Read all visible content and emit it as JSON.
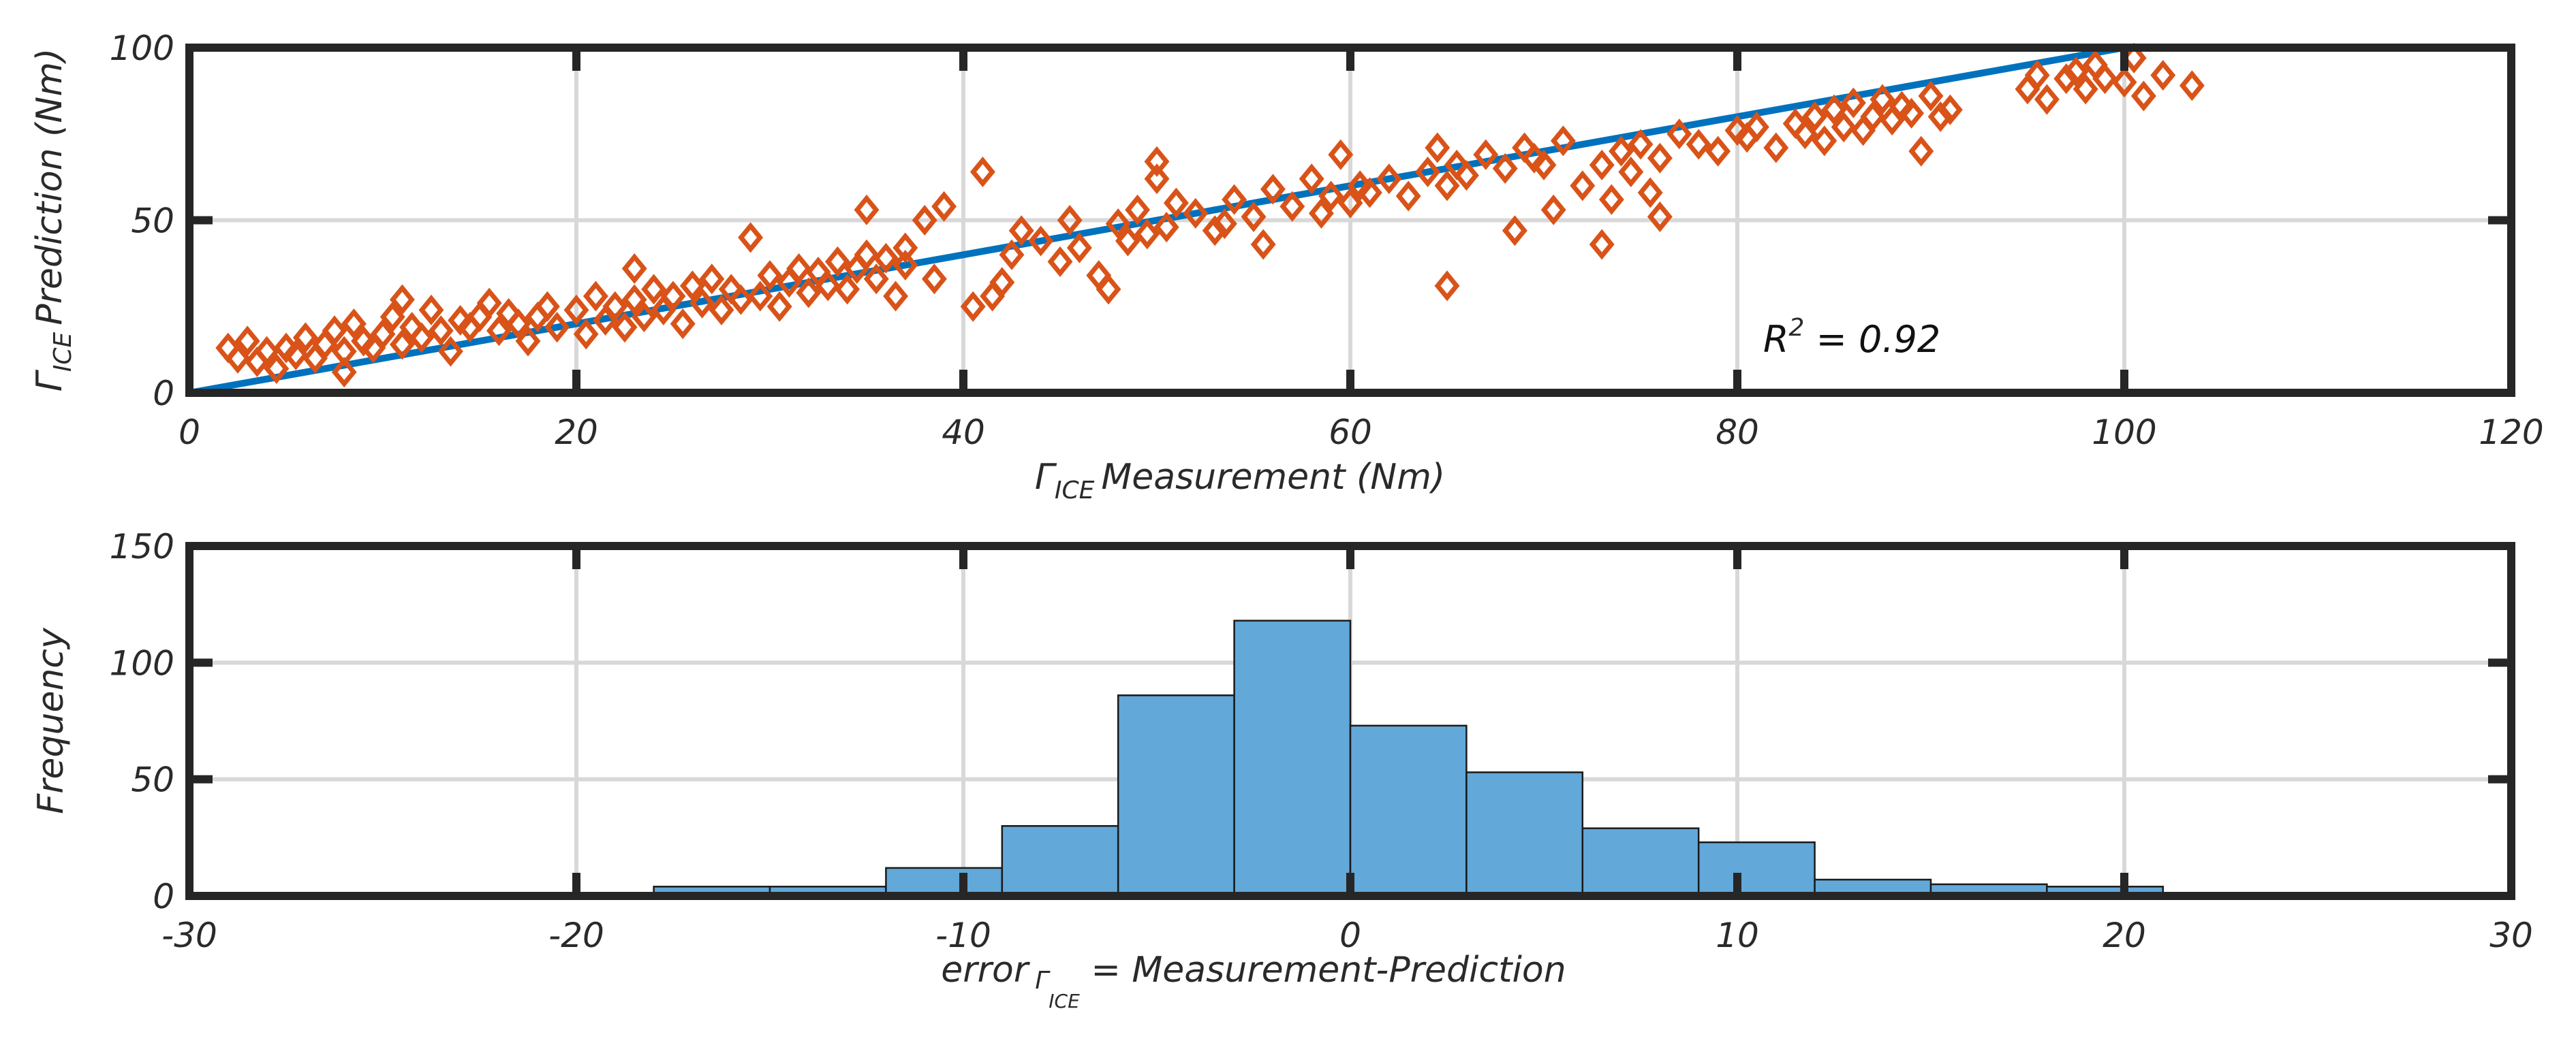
{
  "chart_data": [
    {
      "type": "scatter",
      "title": "",
      "xlabel": {
        "symbol": "Γ",
        "subscript": "ICE",
        "text": "Measurement (Nm)"
      },
      "ylabel": {
        "symbol": "Γ",
        "subscript": "ICE",
        "text": "Prediction (Nm)"
      },
      "xlim": [
        0,
        120
      ],
      "ylim": [
        0,
        100
      ],
      "xticks": [
        0,
        20,
        40,
        60,
        80,
        100,
        120
      ],
      "yticks": [
        0,
        50,
        100
      ],
      "grid": true,
      "annotation": {
        "base": "R",
        "sup": "2",
        "rest": " = 0.92",
        "x": 82,
        "y": 15
      },
      "fit_line": {
        "x": [
          0,
          100
        ],
        "y": [
          0,
          100
        ],
        "color": "#0072bd"
      },
      "marker": "diamond",
      "marker_color": "#d95319",
      "points": [
        [
          2,
          13
        ],
        [
          2.5,
          10
        ],
        [
          3,
          15
        ],
        [
          3.5,
          9
        ],
        [
          4,
          12
        ],
        [
          4.5,
          7
        ],
        [
          5,
          13
        ],
        [
          5.5,
          11
        ],
        [
          6,
          16
        ],
        [
          6.5,
          10
        ],
        [
          7,
          14
        ],
        [
          7.5,
          18
        ],
        [
          8,
          6
        ],
        [
          8,
          12
        ],
        [
          8.5,
          20
        ],
        [
          9,
          15
        ],
        [
          9.5,
          13
        ],
        [
          10,
          17
        ],
        [
          10.5,
          22
        ],
        [
          11,
          14
        ],
        [
          11,
          27
        ],
        [
          11.5,
          19
        ],
        [
          12,
          16
        ],
        [
          12.5,
          24
        ],
        [
          13,
          18
        ],
        [
          13.5,
          12
        ],
        [
          14,
          21
        ],
        [
          14.5,
          19
        ],
        [
          15,
          22
        ],
        [
          15.5,
          26
        ],
        [
          16,
          18
        ],
        [
          16.5,
          23
        ],
        [
          17,
          20
        ],
        [
          17.5,
          15
        ],
        [
          18,
          22
        ],
        [
          18.5,
          25
        ],
        [
          19,
          19
        ],
        [
          20,
          24
        ],
        [
          20.5,
          17
        ],
        [
          21,
          28
        ],
        [
          21.5,
          21
        ],
        [
          22,
          25
        ],
        [
          22.5,
          19
        ],
        [
          23,
          27
        ],
        [
          23,
          36
        ],
        [
          23.5,
          22
        ],
        [
          24,
          30
        ],
        [
          24.5,
          24
        ],
        [
          25,
          28
        ],
        [
          25.5,
          20
        ],
        [
          26,
          31
        ],
        [
          26.5,
          26
        ],
        [
          27,
          33
        ],
        [
          27.5,
          24
        ],
        [
          28,
          30
        ],
        [
          28.5,
          27
        ],
        [
          29,
          45
        ],
        [
          29.5,
          28
        ],
        [
          30,
          34
        ],
        [
          30.5,
          25
        ],
        [
          31,
          32
        ],
        [
          31.5,
          36
        ],
        [
          32,
          29
        ],
        [
          32.5,
          35
        ],
        [
          33,
          31
        ],
        [
          33.5,
          38
        ],
        [
          34,
          30
        ],
        [
          34.5,
          36
        ],
        [
          35,
          40
        ],
        [
          35,
          53
        ],
        [
          35.5,
          33
        ],
        [
          36,
          39
        ],
        [
          36.5,
          28
        ],
        [
          37,
          42
        ],
        [
          37,
          37
        ],
        [
          38,
          50
        ],
        [
          38.5,
          33
        ],
        [
          39,
          54
        ],
        [
          40.5,
          25
        ],
        [
          41,
          64
        ],
        [
          41.5,
          28
        ],
        [
          42,
          32
        ],
        [
          42.5,
          40
        ],
        [
          43,
          47
        ],
        [
          44,
          44
        ],
        [
          45,
          38
        ],
        [
          45.5,
          50
        ],
        [
          46,
          42
        ],
        [
          47,
          34
        ],
        [
          47.5,
          30
        ],
        [
          48,
          49
        ],
        [
          48.5,
          44
        ],
        [
          49,
          53
        ],
        [
          49.5,
          46
        ],
        [
          50,
          62
        ],
        [
          50,
          67
        ],
        [
          50.5,
          48
        ],
        [
          51,
          55
        ],
        [
          52,
          52
        ],
        [
          53,
          47
        ],
        [
          53.5,
          49
        ],
        [
          54,
          56
        ],
        [
          55,
          51
        ],
        [
          55.5,
          43
        ],
        [
          56,
          59
        ],
        [
          57,
          54
        ],
        [
          58,
          62
        ],
        [
          58.5,
          52
        ],
        [
          59,
          57
        ],
        [
          59.5,
          69
        ],
        [
          60,
          55
        ],
        [
          60.5,
          60
        ],
        [
          61,
          58
        ],
        [
          62,
          62
        ],
        [
          63,
          57
        ],
        [
          64,
          64
        ],
        [
          64.5,
          71
        ],
        [
          65,
          60
        ],
        [
          65,
          31
        ],
        [
          65.5,
          66
        ],
        [
          66,
          63
        ],
        [
          67,
          69
        ],
        [
          68,
          65
        ],
        [
          68.5,
          47
        ],
        [
          69,
          71
        ],
        [
          69.5,
          68
        ],
        [
          70,
          66
        ],
        [
          70.5,
          53
        ],
        [
          71,
          73
        ],
        [
          72,
          60
        ],
        [
          73,
          66
        ],
        [
          73,
          43
        ],
        [
          73.5,
          56
        ],
        [
          74,
          70
        ],
        [
          74.5,
          64
        ],
        [
          75,
          72
        ],
        [
          75.5,
          58
        ],
        [
          76,
          68
        ],
        [
          76,
          51
        ],
        [
          77,
          75
        ],
        [
          78,
          72
        ],
        [
          79,
          70
        ],
        [
          80,
          76
        ],
        [
          80.5,
          74
        ],
        [
          81,
          77
        ],
        [
          82,
          71
        ],
        [
          83,
          78
        ],
        [
          83.5,
          75
        ],
        [
          84,
          80
        ],
        [
          84.5,
          73
        ],
        [
          85,
          82
        ],
        [
          85.5,
          77
        ],
        [
          86,
          84
        ],
        [
          86.5,
          76
        ],
        [
          87,
          80
        ],
        [
          87.5,
          85
        ],
        [
          88,
          79
        ],
        [
          88.5,
          83
        ],
        [
          89,
          81
        ],
        [
          89.5,
          70
        ],
        [
          90,
          86
        ],
        [
          90.5,
          80
        ],
        [
          91,
          82
        ],
        [
          95,
          88
        ],
        [
          95.5,
          92
        ],
        [
          96,
          85
        ],
        [
          97,
          91
        ],
        [
          97.5,
          93
        ],
        [
          98,
          88
        ],
        [
          98.5,
          95
        ],
        [
          99,
          91
        ],
        [
          100,
          90
        ],
        [
          100.5,
          97
        ],
        [
          101,
          86
        ],
        [
          102,
          92
        ],
        [
          103.5,
          89
        ]
      ]
    },
    {
      "type": "bar",
      "title": "",
      "xlabel": {
        "text": "error",
        "sub_symbol": "Γ",
        "sub_subscript": "ICE",
        "rest": " = Measurement-Prediction"
      },
      "ylabel": "Frequency",
      "xlim": [
        -30,
        30
      ],
      "ylim": [
        0,
        150
      ],
      "xticks": [
        -30,
        -20,
        -10,
        0,
        10,
        20,
        30
      ],
      "yticks": [
        0,
        50,
        100,
        150
      ],
      "grid": true,
      "bar_color": "#62a8d9",
      "bin_edges": [
        -18,
        -15,
        -12,
        -9,
        -6,
        -3,
        0,
        3,
        6,
        9,
        12,
        15,
        18,
        21
      ],
      "values": [
        4,
        4,
        12,
        30,
        86,
        118,
        73,
        53,
        29,
        23,
        7,
        5,
        4
      ]
    }
  ]
}
